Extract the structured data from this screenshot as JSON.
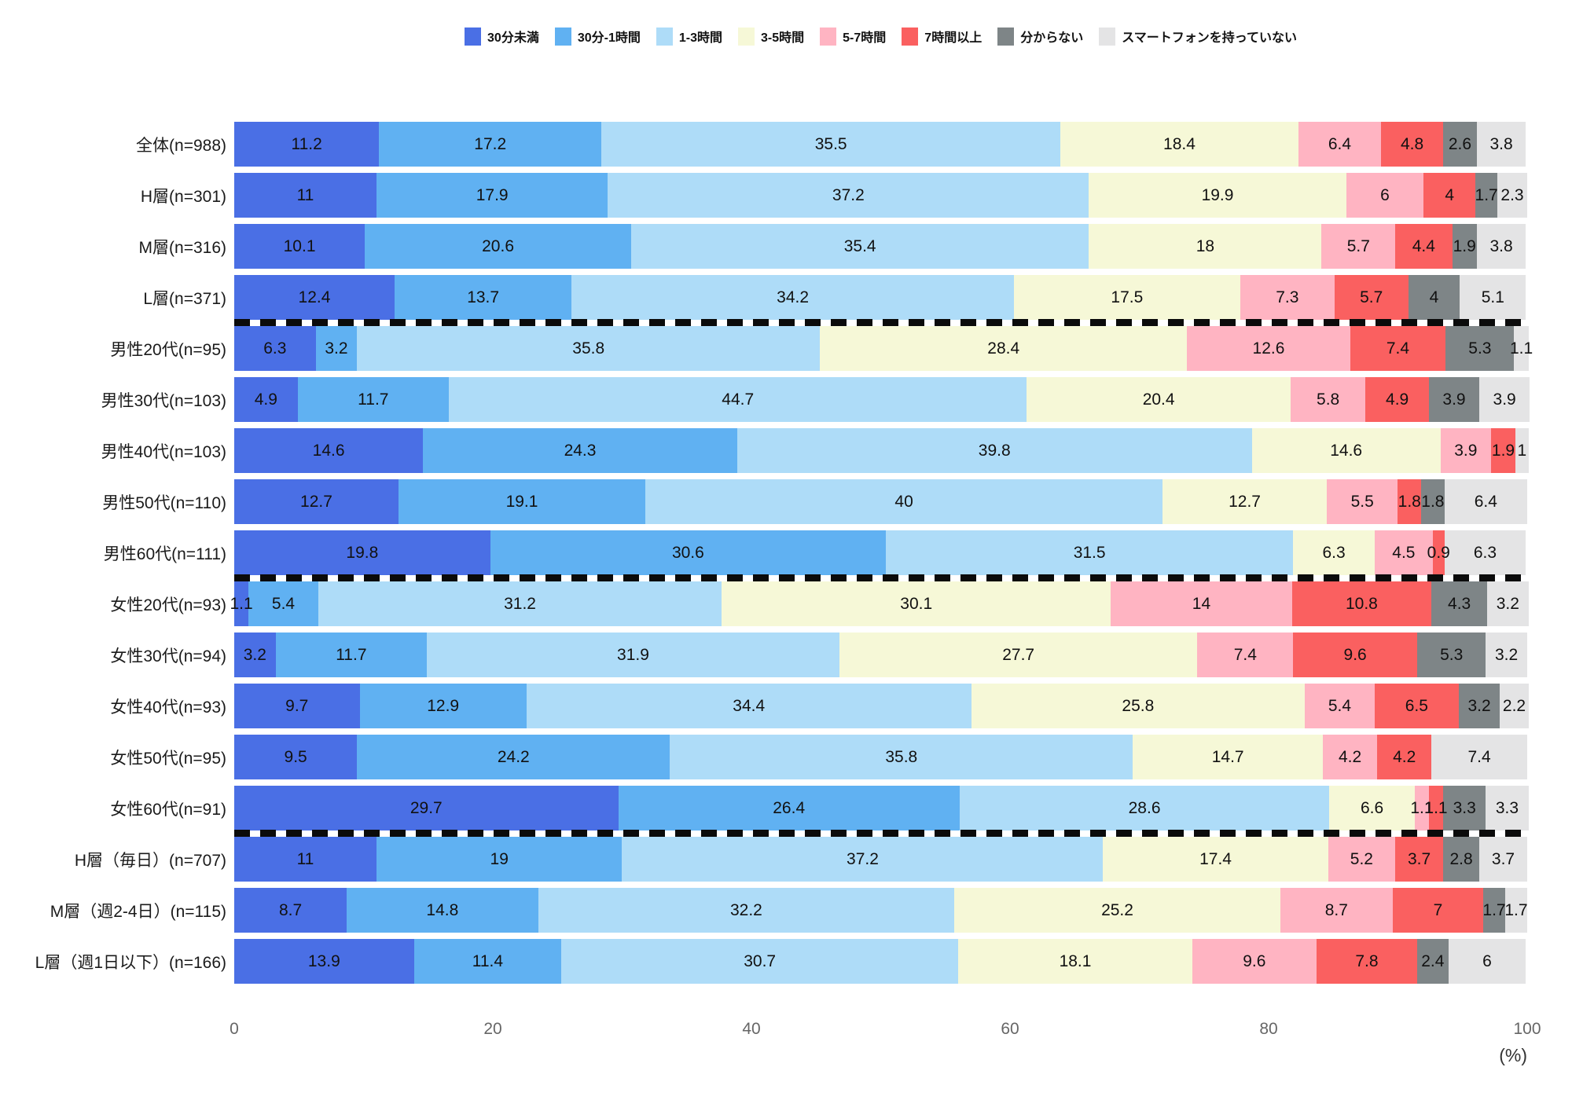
{
  "chart_data": {
    "type": "bar",
    "orientation": "horizontal",
    "stacked": true,
    "title": "",
    "xlabel": "",
    "ylabel": "",
    "x_axis": {
      "min": 0,
      "max": 100,
      "ticks": [
        0,
        20,
        40,
        60,
        80,
        100
      ],
      "unit": "(%)"
    },
    "legend_position": "top",
    "grid": false,
    "separators_after_rows": [
      3,
      8,
      13
    ],
    "categories": [
      "全体(n=988)",
      "H層(n=301)",
      "M層(n=316)",
      "L層(n=371)",
      "男性20代(n=95)",
      "男性30代(n=103)",
      "男性40代(n=103)",
      "男性50代(n=110)",
      "男性60代(n=111)",
      "女性20代(n=93)",
      "女性30代(n=94)",
      "女性40代(n=93)",
      "女性50代(n=95)",
      "女性60代(n=91)",
      "H層（毎日）(n=707)",
      "M層（週2-4日）(n=115)",
      "L層（週1日以下）(n=166)"
    ],
    "series": [
      {
        "name": "30分未満",
        "color": "#4A6FE5",
        "values": [
          11.2,
          11,
          10.1,
          12.4,
          6.3,
          4.9,
          14.6,
          12.7,
          19.8,
          1.1,
          3.2,
          9.7,
          9.5,
          29.7,
          11,
          8.7,
          13.9
        ]
      },
      {
        "name": "30分-1時間",
        "color": "#60B1F2",
        "values": [
          17.2,
          17.9,
          20.6,
          13.7,
          3.2,
          11.7,
          24.3,
          19.1,
          30.6,
          5.4,
          11.7,
          12.9,
          24.2,
          26.4,
          19,
          14.8,
          11.4
        ]
      },
      {
        "name": "1-3時間",
        "color": "#AEDCF8",
        "values": [
          35.5,
          37.2,
          35.4,
          34.2,
          35.8,
          44.7,
          39.8,
          40,
          31.5,
          31.2,
          31.9,
          34.4,
          35.8,
          28.6,
          37.2,
          32.2,
          30.7
        ]
      },
      {
        "name": "3-5時間",
        "color": "#F6F8D7",
        "values": [
          18.4,
          19.9,
          18,
          17.5,
          28.4,
          20.4,
          14.6,
          12.7,
          6.3,
          30.1,
          27.7,
          25.8,
          14.7,
          6.6,
          17.4,
          25.2,
          18.1
        ]
      },
      {
        "name": "5-7時間",
        "color": "#FFB4C2",
        "values": [
          6.4,
          6,
          5.7,
          7.3,
          12.6,
          5.8,
          3.9,
          5.5,
          4.5,
          14,
          7.4,
          5.4,
          4.2,
          1.1,
          5.2,
          8.7,
          9.6
        ]
      },
      {
        "name": "7時間以上",
        "color": "#FA6060",
        "values": [
          4.8,
          4,
          4.4,
          5.7,
          7.4,
          4.9,
          1.9,
          1.8,
          0.9,
          10.8,
          9.6,
          6.5,
          4.2,
          1.1,
          3.7,
          7,
          7.8
        ]
      },
      {
        "name": "分からない",
        "color": "#7E8587",
        "values": [
          2.6,
          1.7,
          1.9,
          4,
          5.3,
          3.9,
          0,
          1.8,
          0,
          4.3,
          5.3,
          3.2,
          0,
          3.3,
          2.8,
          1.7,
          2.4
        ]
      },
      {
        "name": "スマートフォンを持っていない",
        "color": "#E4E4E5",
        "values": [
          3.8,
          2.3,
          3.8,
          5.1,
          1.1,
          3.9,
          1,
          6.4,
          6.3,
          3.2,
          3.2,
          2.2,
          7.4,
          3.3,
          3.7,
          1.7,
          6
        ]
      }
    ]
  },
  "layout_colors": {
    "background": "#ffffff",
    "separator": "#0b0b0b",
    "axis_text": "#666666",
    "label_text": "#111111"
  }
}
